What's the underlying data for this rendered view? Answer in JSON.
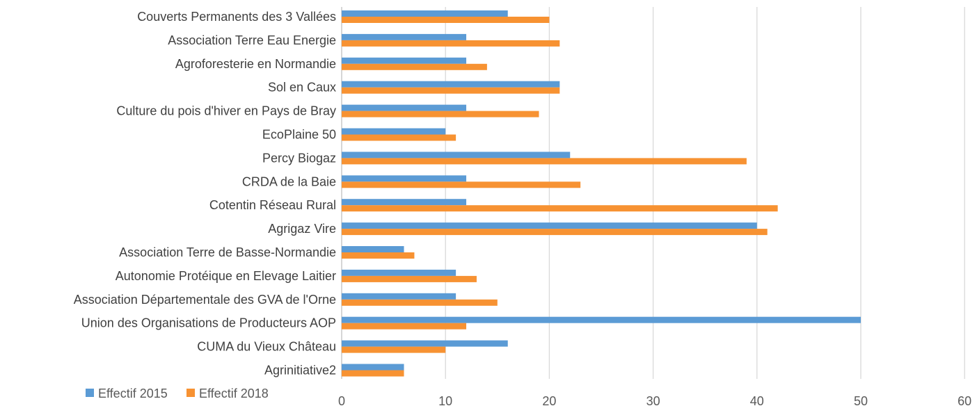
{
  "chart_data": {
    "type": "bar",
    "orientation": "horizontal",
    "title": "",
    "categories": [
      "Couverts Permanents des 3 Vallées",
      "Association Terre Eau Energie",
      "Agroforesterie en Normandie",
      "Sol en Caux",
      "Culture du pois d'hiver en Pays de Bray",
      "EcoPlaine 50",
      "Percy Biogaz",
      "CRDA de la Baie",
      "Cotentin Réseau Rural",
      "Agrigaz Vire",
      "Association Terre de Basse-Normandie",
      "Autonomie Protéique en Elevage Laitier",
      "Association Départementale des GVA de l'Orne",
      "Union des Organisations de Producteurs AOP",
      "CUMA du Vieux Château",
      "Agrinitiative2"
    ],
    "series": [
      {
        "name": "Effectif 2015",
        "color": "#5B9BD5",
        "values": [
          16,
          12,
          12,
          21,
          12,
          10,
          22,
          12,
          12,
          40,
          6,
          11,
          11,
          50,
          16,
          6
        ]
      },
      {
        "name": "Effectif 2018",
        "color": "#F79232",
        "values": [
          20,
          21,
          14,
          21,
          19,
          11,
          39,
          23,
          42,
          41,
          7,
          13,
          15,
          12,
          10,
          6
        ]
      }
    ],
    "xlim": [
      0,
      60
    ],
    "xticks": [
      "0",
      "10",
      "20",
      "30",
      "40",
      "50",
      "60"
    ],
    "grid": true,
    "legend_position": "bottom-left"
  }
}
